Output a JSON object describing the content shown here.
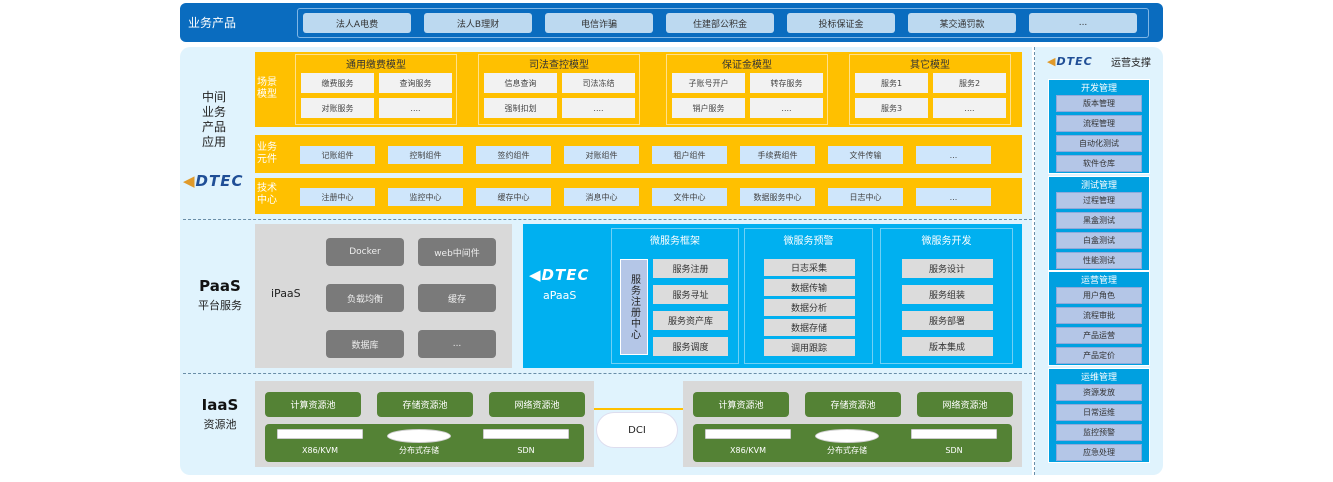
{
  "top": {
    "label": "业务产品",
    "products": [
      "法人A电费",
      "法人B理财",
      "电信诈骗",
      "住建部公积金",
      "投标保证金",
      "某交通罚款",
      "..."
    ]
  },
  "middle": {
    "label": "中间业务产品应用",
    "logo": "DTEC",
    "scene": {
      "label": "场景模型",
      "models": [
        {
          "title": "通用缴费模型",
          "items": [
            "缴费服务",
            "查询服务",
            "对账服务",
            "...."
          ]
        },
        {
          "title": "司法查控模型",
          "items": [
            "信息查询",
            "司法冻结",
            "强制扣划",
            "...."
          ]
        },
        {
          "title": "保证金模型",
          "items": [
            "子账号开户",
            "转存服务",
            "销户服务",
            "...."
          ]
        },
        {
          "title": "其它模型",
          "items": [
            "服务1",
            "服务2",
            "服务3",
            "...."
          ]
        }
      ]
    },
    "elements": {
      "label": "业务元件",
      "items": [
        "记账组件",
        "控制组件",
        "签约组件",
        "对账组件",
        "租户组件",
        "手续费组件",
        "文件传输",
        "..."
      ]
    },
    "tech": {
      "label": "技术中心",
      "items": [
        "注册中心",
        "监控中心",
        "缓存中心",
        "消息中心",
        "文件中心",
        "数据服务中心",
        "日志中心",
        "..."
      ]
    }
  },
  "paas": {
    "title": "PaaS",
    "subtitle": "平台服务",
    "ipaas": {
      "label": "iPaaS",
      "items": [
        "Docker",
        "web中间件",
        "负载均衡",
        "缓存",
        "数据库",
        "..."
      ]
    },
    "apaas": {
      "logo": "DTEC",
      "label": "aPaaS",
      "frames": [
        {
          "title": "微服务框架",
          "registry": "服务注册中心",
          "items": [
            "服务注册",
            "服务寻址",
            "服务资产库",
            "服务调度"
          ]
        },
        {
          "title": "微服务预警",
          "items": [
            "日志采集",
            "数据传输",
            "数据分析",
            "数据存储",
            "调用跟踪"
          ]
        },
        {
          "title": "微服务开发",
          "items": [
            "服务设计",
            "服务组装",
            "服务部署",
            "版本集成"
          ]
        }
      ]
    }
  },
  "iaas": {
    "title": "IaaS",
    "subtitle": "资源池",
    "dci": "DCI",
    "pools": [
      "计算资源池",
      "存储资源池",
      "网络资源池"
    ],
    "devices": [
      "X86/KVM",
      "分布式存储",
      "SDN"
    ]
  },
  "ops": {
    "logo": "DTEC",
    "title": "运营支撑",
    "groups": [
      {
        "title": "开发管理",
        "items": [
          "版本管理",
          "流程管理",
          "自动化测试",
          "软件仓库"
        ]
      },
      {
        "title": "测试管理",
        "items": [
          "过程管理",
          "黑盒测试",
          "白盒测试",
          "性能测试"
        ]
      },
      {
        "title": "运营管理",
        "items": [
          "用户角色",
          "流程审批",
          "产品运营",
          "产品定价"
        ]
      },
      {
        "title": "运维管理",
        "items": [
          "资源发放",
          "日常运维",
          "监控预警",
          "应急处理"
        ]
      }
    ]
  },
  "colors": {
    "top_bar": "#0a6cbf",
    "middle": "#ffc000",
    "apaas": "#00b0f0",
    "iaas": "#548235",
    "panel": "#e0f3fd"
  }
}
